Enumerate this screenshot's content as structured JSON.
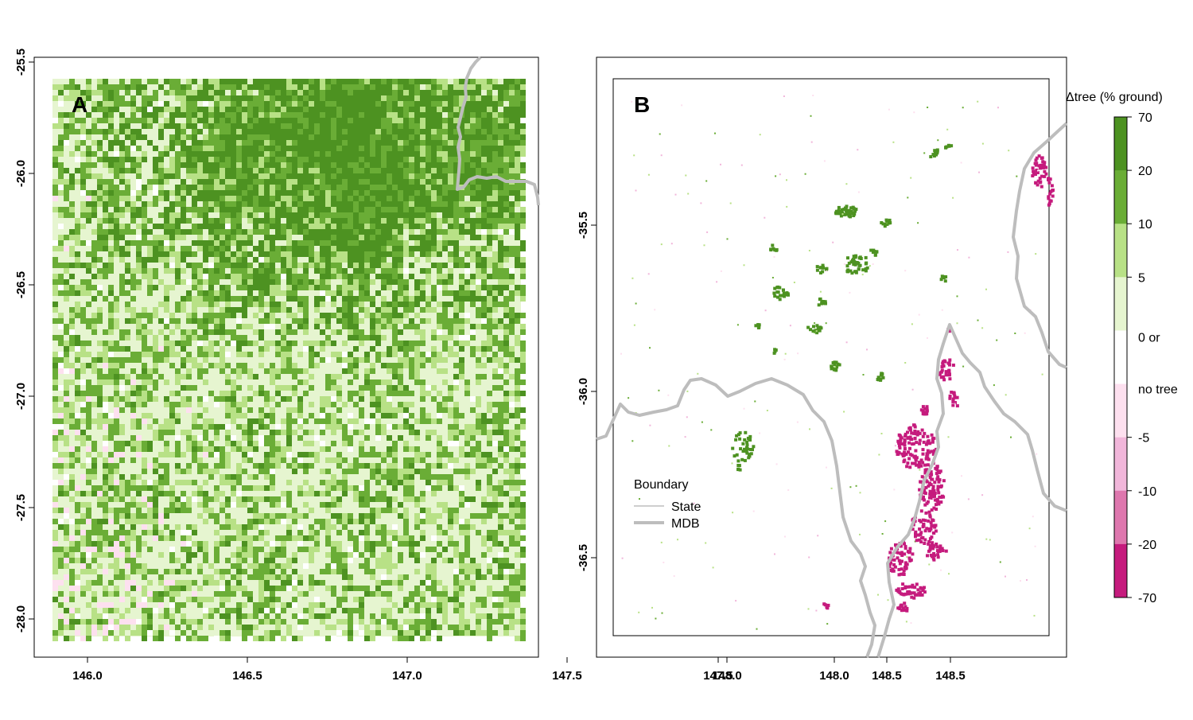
{
  "panel_a": {
    "label": "A",
    "x_ticks": [
      "146.0",
      "146.5",
      "147.0",
      "147.5",
      "148.0",
      "148.5"
    ],
    "y_ticks": [
      "-25.5",
      "-26.0",
      "-26.5",
      "-27.0",
      "-27.5",
      "-28.0"
    ]
  },
  "panel_b": {
    "label": "B",
    "x_ticks": [
      "147.5",
      "148.0",
      "148.5"
    ],
    "y_ticks": [
      "-35.5",
      "-36.0",
      "-36.5"
    ],
    "legend": {
      "title": "Boundary",
      "items": [
        {
          "label": "State",
          "color": "#bdbdbd"
        },
        {
          "label": "MDB",
          "color": "#bdbdbd"
        }
      ]
    }
  },
  "colorbar": {
    "title": "Δtree (% ground)",
    "labels": [
      "70",
      "20",
      "10",
      "5",
      "0 or",
      "no tree",
      "-5",
      "-10",
      "-20",
      "-70"
    ],
    "colors": [
      "#4d9221",
      "#6aad36",
      "#b8e186",
      "#e6f5d0",
      "#ffffff",
      "#fde0ef",
      "#f1b6da",
      "#de77ae",
      "#c51b7d"
    ]
  },
  "chart_data": [
    {
      "type": "heatmap",
      "title": "A",
      "xlabel": "",
      "ylabel": "",
      "xlim": [
        145.68,
        148.72
      ],
      "ylim": [
        -28.17,
        -25.52
      ],
      "raster_extent": {
        "x": [
          145.83,
          148.62
        ],
        "y": [
          -28.08,
          -25.57
        ]
      },
      "value_classes": [
        "-70..-20",
        "-20..-10",
        "-10..-5",
        "-5..0",
        "0..5",
        "5..10",
        "10..20",
        "20..70"
      ],
      "description_dominant": "mostly 0..5 and 5..10 gain classes, dense 20..70 gain in north-east, scattered -5..0 loss in south-west",
      "boundary_lines": [
        "State"
      ]
    },
    {
      "type": "heatmap",
      "title": "B",
      "xlabel": "",
      "ylabel": "",
      "xlim": [
        147.05,
        148.97
      ],
      "ylim": [
        -36.73,
        -35.03
      ],
      "raster_extent": {
        "x": [
          147.1,
          148.92
        ],
        "y": [
          -36.67,
          -35.1
        ]
      },
      "value_classes": [
        "-70..-20",
        "-20..-10",
        "-10..-5",
        "-5..0",
        "0..5",
        "5..10",
        "10..20",
        "20..70"
      ],
      "description_dominant": "mostly no change; patches of 20..70 gain centre-west; strong -70..-20 loss along south-east ridge near 148.4",
      "boundary_lines": [
        "State",
        "MDB"
      ]
    }
  ]
}
